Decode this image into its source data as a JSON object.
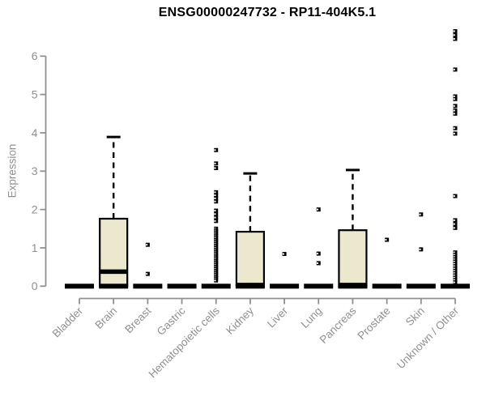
{
  "chart_data": {
    "type": "boxplot",
    "title": "ENSG00000247732 - RP11-404K5.1",
    "ylabel": "Expression",
    "xlabel": "",
    "y_ticks": [
      0,
      1,
      2,
      3,
      4,
      5,
      6
    ],
    "ylim": [
      0,
      6.8
    ],
    "grid": false,
    "legend": "none",
    "colors": {
      "box_fill": "#ece8cd",
      "box_stroke": "#000000",
      "median": "#000000",
      "outlier": "#000000",
      "axis": "#909090",
      "tick_text": "#909090",
      "title_text": "#000000",
      "background": "#ffffff"
    },
    "categories": [
      {
        "label": "Bladder",
        "whisker_low": 0,
        "q1": 0,
        "median": 0,
        "q3": 0,
        "whisker_high": 0,
        "outliers": []
      },
      {
        "label": "Brain",
        "whisker_low": 0,
        "q1": 0,
        "median": 0.38,
        "q3": 1.76,
        "whisker_high": 3.89,
        "outliers": []
      },
      {
        "label": "Breast",
        "whisker_low": 0,
        "q1": 0,
        "median": 0,
        "q3": 0,
        "whisker_high": 0,
        "outliers": [
          1.08,
          0.32
        ]
      },
      {
        "label": "Gastric",
        "whisker_low": 0,
        "q1": 0,
        "median": 0,
        "q3": 0,
        "whisker_high": 0,
        "outliers": []
      },
      {
        "label": "Hematopoietic cells",
        "whisker_low": 0,
        "q1": 0,
        "median": 0,
        "q3": 0,
        "whisker_high": 0,
        "outliers": [
          3.55,
          3.2,
          3.08,
          2.45,
          2.37,
          2.29,
          2.21,
          1.97,
          1.88,
          1.79,
          1.7,
          1.5,
          1.45,
          1.4,
          1.35,
          1.3,
          1.25,
          1.2,
          1.15,
          1.1,
          1.05,
          1.0,
          0.95,
          0.9,
          0.85,
          0.8,
          0.75,
          0.7,
          0.65,
          0.6,
          0.55,
          0.5,
          0.45,
          0.4,
          0.35,
          0.3,
          0.25,
          0.2,
          0.15
        ]
      },
      {
        "label": "Kidney",
        "whisker_low": 0,
        "q1": 0,
        "median": 0.03,
        "q3": 1.42,
        "whisker_high": 2.94,
        "outliers": []
      },
      {
        "label": "Liver",
        "whisker_low": 0,
        "q1": 0,
        "median": 0,
        "q3": 0,
        "whisker_high": 0,
        "outliers": [
          0.84
        ]
      },
      {
        "label": "Lung",
        "whisker_low": 0,
        "q1": 0,
        "median": 0,
        "q3": 0,
        "whisker_high": 0,
        "outliers": [
          2.0,
          0.85,
          0.6
        ]
      },
      {
        "label": "Pancreas",
        "whisker_low": 0,
        "q1": 0,
        "median": 0.03,
        "q3": 1.46,
        "whisker_high": 3.03,
        "outliers": []
      },
      {
        "label": "Prostate",
        "whisker_low": 0,
        "q1": 0,
        "median": 0,
        "q3": 0,
        "whisker_high": 0,
        "outliers": [
          1.21
        ]
      },
      {
        "label": "Skin",
        "whisker_low": 0,
        "q1": 0,
        "median": 0,
        "q3": 0,
        "whisker_high": 0,
        "outliers": [
          1.87,
          0.96
        ]
      },
      {
        "label": "Unknown / Other",
        "whisker_low": 0,
        "q1": 0,
        "median": 0,
        "q3": 0,
        "whisker_high": 0,
        "outliers": [
          6.65,
          6.55,
          6.45,
          5.65,
          4.95,
          4.88,
          4.7,
          4.58,
          4.5,
          4.12,
          3.98,
          2.35,
          1.72,
          1.62,
          1.52,
          0.88,
          0.82,
          0.76,
          0.7,
          0.64,
          0.58,
          0.52,
          0.46,
          0.4,
          0.34,
          0.28,
          0.22,
          0.16,
          0.1
        ]
      }
    ]
  }
}
